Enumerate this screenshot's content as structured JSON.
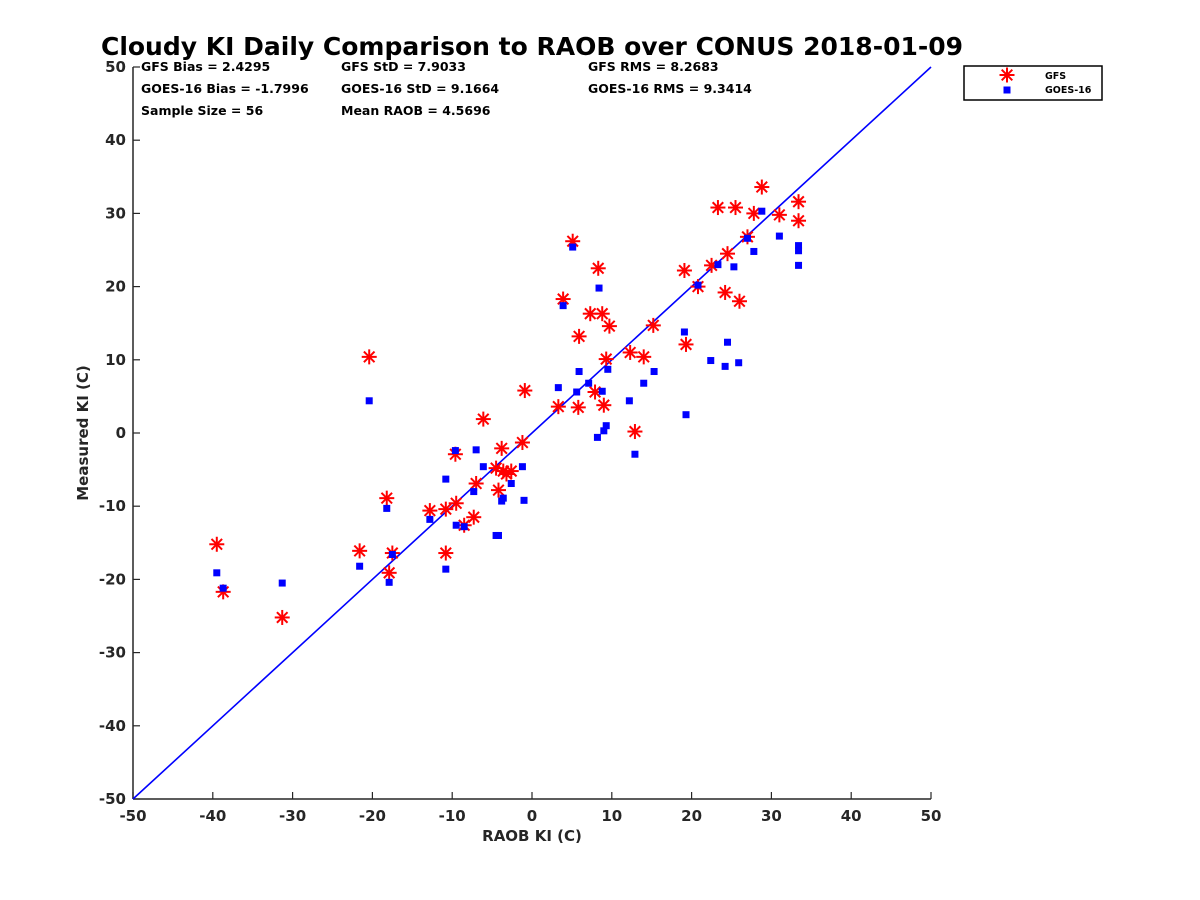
{
  "chart_data": {
    "type": "scatter",
    "title": "Cloudy KI Daily Comparison to RAOB over CONUS 2018-01-09",
    "xlabel": "RAOB KI (C)",
    "ylabel": "Measured KI (C)",
    "xlim": [
      -50,
      50
    ],
    "ylim": [
      -50,
      50
    ],
    "xticks": [
      "-50",
      "-40",
      "-30",
      "-20",
      "-10",
      "0",
      "10",
      "20",
      "30",
      "40",
      "50"
    ],
    "yticks": [
      "50",
      "40",
      "30",
      "20",
      "10",
      "0",
      "-10",
      "-20",
      "-30",
      "-40",
      "-50"
    ],
    "grid": false,
    "legend_position": "top-right-outside",
    "reference_line": {
      "from": [
        -50,
        -50
      ],
      "to": [
        50,
        50
      ],
      "color": "#0000ff"
    },
    "stats": {
      "gfs_bias": "GFS Bias = 2.4295",
      "gfs_std": "GFS StD = 7.9033",
      "gfs_rms": "GFS RMS = 8.2683",
      "goes_bias": "GOES-16 Bias = -1.7996",
      "goes_std": "GOES-16 StD = 9.1664",
      "goes_rms": "GOES-16 RMS = 9.3414",
      "sample_size": "Sample Size = 56",
      "mean_raob": "Mean RAOB = 4.5696"
    },
    "series": [
      {
        "name": "GFS",
        "marker": "asterisk",
        "color": "#ff0000",
        "points": [
          [
            -39.5,
            -15.2
          ],
          [
            -38.7,
            -21.7
          ],
          [
            -31.3,
            -25.2
          ],
          [
            -21.6,
            -16.1
          ],
          [
            -20.4,
            10.4
          ],
          [
            -18.2,
            -8.9
          ],
          [
            -17.9,
            -19.1
          ],
          [
            -17.5,
            -16.4
          ],
          [
            -12.8,
            -10.6
          ],
          [
            -10.8,
            -10.4
          ],
          [
            -10.8,
            -16.4
          ],
          [
            -9.6,
            -2.9
          ],
          [
            -9.5,
            -9.6
          ],
          [
            -8.5,
            -12.6
          ],
          [
            -7.3,
            -11.5
          ],
          [
            -7.0,
            -6.9
          ],
          [
            -6.1,
            1.9
          ],
          [
            -4.5,
            -4.8
          ],
          [
            -4.2,
            -7.8
          ],
          [
            -3.8,
            -2.1
          ],
          [
            -3.6,
            -5.2
          ],
          [
            -3.2,
            -5.6
          ],
          [
            -2.6,
            -5.2
          ],
          [
            -1.2,
            -1.3
          ],
          [
            -0.9,
            5.8
          ],
          [
            3.3,
            3.6
          ],
          [
            3.9,
            18.3
          ],
          [
            5.1,
            26.2
          ],
          [
            5.8,
            3.5
          ],
          [
            5.9,
            13.2
          ],
          [
            7.3,
            16.3
          ],
          [
            7.9,
            5.6
          ],
          [
            8.3,
            22.5
          ],
          [
            8.8,
            16.3
          ],
          [
            9.0,
            3.8
          ],
          [
            9.3,
            10.1
          ],
          [
            9.7,
            14.6
          ],
          [
            12.3,
            11.0
          ],
          [
            12.9,
            0.2
          ],
          [
            14.0,
            10.4
          ],
          [
            15.2,
            14.7
          ],
          [
            19.1,
            22.2
          ],
          [
            19.3,
            12.1
          ],
          [
            20.8,
            20.0
          ],
          [
            22.5,
            22.9
          ],
          [
            23.3,
            30.8
          ],
          [
            24.2,
            19.2
          ],
          [
            24.5,
            24.5
          ],
          [
            25.5,
            30.8
          ],
          [
            26.0,
            18.0
          ],
          [
            27.0,
            26.8
          ],
          [
            27.8,
            30.0
          ],
          [
            28.8,
            33.6
          ],
          [
            31.0,
            29.8
          ],
          [
            33.4,
            31.6
          ],
          [
            33.4,
            29.0
          ]
        ]
      },
      {
        "name": "GOES-16",
        "marker": "square",
        "color": "#0000ff",
        "points": [
          [
            -39.5,
            -19.1
          ],
          [
            -38.7,
            -21.2
          ],
          [
            -31.3,
            -20.5
          ],
          [
            -21.6,
            -18.2
          ],
          [
            -20.4,
            4.4
          ],
          [
            -18.2,
            -10.3
          ],
          [
            -17.9,
            -20.4
          ],
          [
            -17.5,
            -16.6
          ],
          [
            -12.8,
            -11.8
          ],
          [
            -10.8,
            -6.3
          ],
          [
            -10.8,
            -18.6
          ],
          [
            -9.6,
            -2.4
          ],
          [
            -9.5,
            -12.6
          ],
          [
            -8.5,
            -12.8
          ],
          [
            -7.3,
            -8.0
          ],
          [
            -7.0,
            -2.3
          ],
          [
            -6.1,
            -4.6
          ],
          [
            -4.5,
            -14.0
          ],
          [
            -4.2,
            -14.0
          ],
          [
            -3.8,
            -9.3
          ],
          [
            -3.6,
            -8.9
          ],
          [
            -2.6,
            -6.9
          ],
          [
            -1.2,
            -4.6
          ],
          [
            -1.0,
            -9.2
          ],
          [
            3.3,
            6.2
          ],
          [
            3.9,
            17.4
          ],
          [
            5.1,
            25.4
          ],
          [
            5.6,
            5.6
          ],
          [
            5.9,
            8.4
          ],
          [
            7.1,
            6.8
          ],
          [
            8.2,
            -0.6
          ],
          [
            8.4,
            19.8
          ],
          [
            8.8,
            5.7
          ],
          [
            9.0,
            0.3
          ],
          [
            9.3,
            1.0
          ],
          [
            9.5,
            8.7
          ],
          [
            12.2,
            4.4
          ],
          [
            12.9,
            -2.9
          ],
          [
            14.0,
            6.8
          ],
          [
            15.3,
            8.4
          ],
          [
            19.1,
            13.8
          ],
          [
            19.3,
            2.5
          ],
          [
            20.8,
            20.2
          ],
          [
            22.4,
            9.9
          ],
          [
            23.3,
            23.0
          ],
          [
            24.2,
            9.1
          ],
          [
            24.5,
            12.4
          ],
          [
            25.3,
            22.7
          ],
          [
            25.9,
            9.6
          ],
          [
            27.0,
            26.6
          ],
          [
            27.8,
            24.8
          ],
          [
            28.8,
            30.3
          ],
          [
            31.0,
            26.9
          ],
          [
            33.4,
            25.6
          ],
          [
            33.4,
            24.9
          ],
          [
            33.4,
            22.9
          ]
        ]
      }
    ]
  }
}
